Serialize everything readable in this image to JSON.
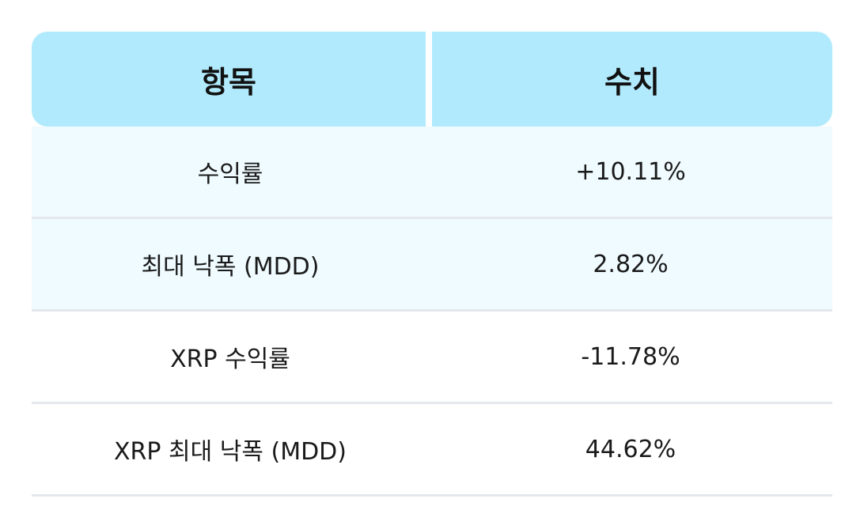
{
  "table": {
    "headers": [
      "항목",
      "수치"
    ],
    "rows": [
      {
        "item": "수익률",
        "value": "+10.11%"
      },
      {
        "item": "최대 낙폭 (MDD)",
        "value": "2.82%"
      },
      {
        "item": "XRP 수익률",
        "value": "-11.78%"
      },
      {
        "item": "XRP 최대 낙폭 (MDD)",
        "value": "44.62%"
      }
    ]
  },
  "colors": {
    "header_bg": "#b1eafc",
    "tinted_row_bg": "#effbff",
    "row_bg": "#ffffff",
    "divider": "#e4e8ec"
  }
}
